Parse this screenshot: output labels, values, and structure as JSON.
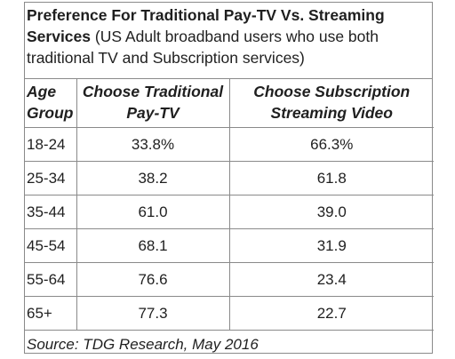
{
  "caption": {
    "title": "Preference For Traditional Pay-TV Vs. Streaming Services",
    "subtitle": "(US Adult broadband users who use both traditional TV and Subscription services)"
  },
  "table": {
    "headers": [
      "Age Group",
      "Choose Traditional Pay-TV",
      "Choose Subscription Streaming Video"
    ],
    "rows": [
      [
        "18-24",
        "33.8%",
        "66.3%"
      ],
      [
        "25-34",
        "38.2",
        "61.8"
      ],
      [
        "35-44",
        "61.0",
        "39.0"
      ],
      [
        "45-54",
        "68.1",
        "31.9"
      ],
      [
        "55-64",
        "76.6",
        "23.4"
      ],
      [
        "65+",
        "77.3",
        "22.7"
      ]
    ]
  },
  "source": "Source: TDG Research, May 2016"
}
